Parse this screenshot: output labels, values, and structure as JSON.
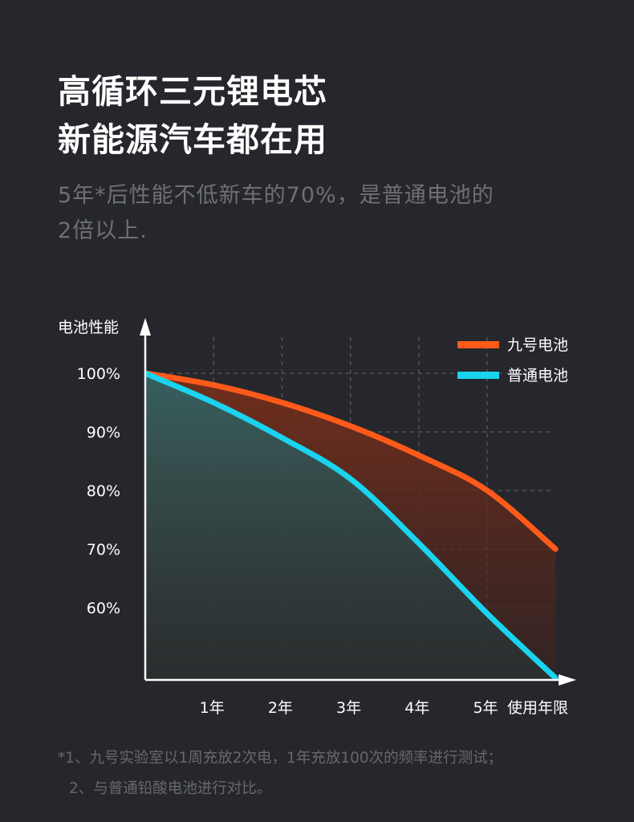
{
  "header": {
    "title_line1": "高循环三元锂电芯",
    "title_line2": "新能源汽车都在用",
    "subtitle_line1": "5年*后性能不低新车的70%，是普通电池的",
    "subtitle_line2": "2倍以上."
  },
  "chart_data": {
    "type": "area",
    "title": "",
    "ylabel": "电池性能",
    "xlabel": "使用年限",
    "x_ticks": [
      "1年",
      "2年",
      "3年",
      "4年",
      "5年"
    ],
    "y_ticks": [
      "100%",
      "90%",
      "80%",
      "70%",
      "60%"
    ],
    "xlim": [
      0,
      6
    ],
    "ylim": [
      50,
      100
    ],
    "grid": true,
    "legend_position": "top-right",
    "series": [
      {
        "name": "九号电池",
        "color": "#ff5a1a",
        "x": [
          0,
          1,
          2,
          3,
          4,
          5,
          6
        ],
        "values": [
          100,
          98,
          95,
          91,
          86,
          80,
          70
        ]
      },
      {
        "name": "普通电池",
        "color": "#1ad3ef",
        "x": [
          0,
          1,
          2,
          3,
          4,
          5,
          6
        ],
        "values": [
          100,
          95,
          89,
          82,
          71,
          59,
          48
        ]
      }
    ]
  },
  "footnote": {
    "line1": "*1、九号实验室以1周充放2次电，1年充放100次的频率进行测试；",
    "line2": "2、与普通铅酸电池进行对比。"
  }
}
